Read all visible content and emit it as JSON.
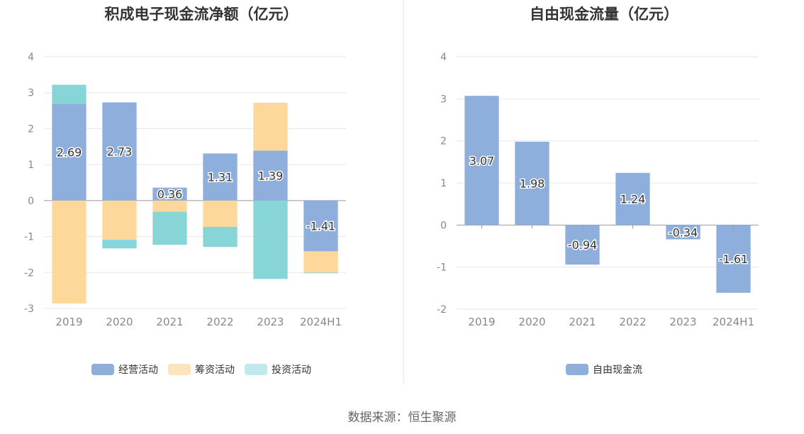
{
  "source_text": "数据来源：恒生聚源",
  "chart_data": [
    {
      "type": "bar",
      "stacked": true,
      "title": "积成电子现金流净额（亿元）",
      "categories": [
        "2019",
        "2020",
        "2021",
        "2022",
        "2023",
        "2024H1"
      ],
      "ylim": [
        -3,
        4
      ],
      "yticks": [
        4,
        3,
        2,
        1,
        0,
        -1,
        -2,
        -3
      ],
      "grid": true,
      "legend_position": "bottom",
      "series": [
        {
          "name": "经营活动",
          "color": "#8eaedb",
          "values": [
            2.69,
            2.73,
            0.36,
            1.31,
            1.39,
            -1.41
          ],
          "labels": [
            "2.69",
            "2.73",
            "0.36",
            "1.31",
            "1.39",
            "-1.41"
          ]
        },
        {
          "name": "筹资活动",
          "color": "#fed89a",
          "values": [
            -2.86,
            -1.09,
            -0.31,
            -0.73,
            1.33,
            -0.59
          ]
        },
        {
          "name": "投资活动",
          "color": "#88d5d8",
          "values": [
            0.53,
            -0.24,
            -0.92,
            -0.56,
            -2.18,
            -0.02
          ]
        }
      ],
      "legend_colors": [
        "#8eaedb",
        "#fee4bd",
        "#c0e9eb"
      ]
    },
    {
      "type": "bar",
      "title": "自由现金流量（亿元）",
      "categories": [
        "2019",
        "2020",
        "2021",
        "2022",
        "2023",
        "2024H1"
      ],
      "ylim": [
        -2,
        4
      ],
      "yticks": [
        4,
        3,
        2,
        1,
        0,
        -1,
        -2
      ],
      "grid": true,
      "legend_position": "bottom",
      "series": [
        {
          "name": "自由现金流",
          "color": "#8eaedb",
          "values": [
            3.07,
            1.98,
            -0.94,
            1.24,
            -0.34,
            -1.61
          ],
          "labels": [
            "3.07",
            "1.98",
            "-0.94",
            "1.24",
            "-0.34",
            "-1.61"
          ]
        }
      ]
    }
  ]
}
